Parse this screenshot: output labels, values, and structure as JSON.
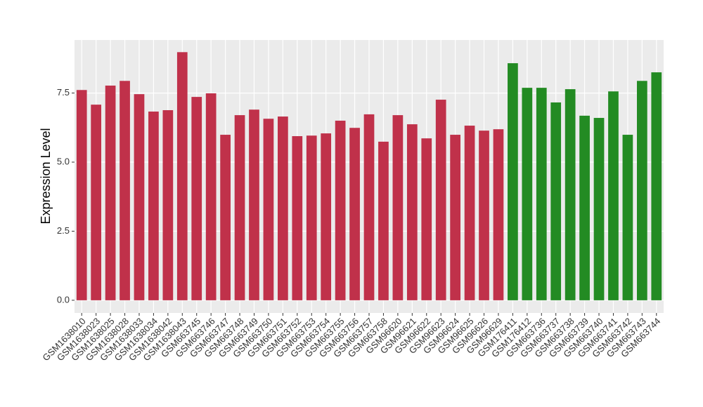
{
  "chart_data": {
    "type": "bar",
    "y_label": "Expression Level",
    "categories": [
      "GSM1638010",
      "GSM1638023",
      "GSM1638025",
      "GSM1638028",
      "GSM1638033",
      "GSM1638034",
      "GSM1638042",
      "GSM1638043",
      "GSM663745",
      "GSM663746",
      "GSM663747",
      "GSM663748",
      "GSM663749",
      "GSM663750",
      "GSM663751",
      "GSM663752",
      "GSM663753",
      "GSM663754",
      "GSM663755",
      "GSM663756",
      "GSM663757",
      "GSM663758",
      "GSM96620",
      "GSM96621",
      "GSM96622",
      "GSM96623",
      "GSM96624",
      "GSM96625",
      "GSM96626",
      "GSM96629",
      "GSM176411",
      "GSM176412",
      "GSM663736",
      "GSM663737",
      "GSM663738",
      "GSM663739",
      "GSM663740",
      "GSM663741",
      "GSM663742",
      "GSM663743",
      "GSM663744"
    ],
    "values": [
      7.61,
      7.08,
      7.77,
      7.94,
      7.46,
      6.83,
      6.88,
      8.98,
      7.36,
      7.49,
      5.99,
      6.7,
      6.9,
      6.57,
      6.65,
      5.94,
      5.96,
      6.04,
      6.5,
      6.24,
      6.73,
      5.74,
      6.7,
      6.37,
      5.86,
      7.26,
      5.99,
      6.32,
      6.14,
      6.19,
      8.58,
      7.69,
      7.69,
      7.16,
      7.64,
      6.68,
      6.6,
      7.56,
      5.99,
      7.94,
      8.25
    ],
    "colors": [
      "#c0314a",
      "#c0314a",
      "#c0314a",
      "#c0314a",
      "#c0314a",
      "#c0314a",
      "#c0314a",
      "#c0314a",
      "#c0314a",
      "#c0314a",
      "#c0314a",
      "#c0314a",
      "#c0314a",
      "#c0314a",
      "#c0314a",
      "#c0314a",
      "#c0314a",
      "#c0314a",
      "#c0314a",
      "#c0314a",
      "#c0314a",
      "#c0314a",
      "#c0314a",
      "#c0314a",
      "#c0314a",
      "#c0314a",
      "#c0314a",
      "#c0314a",
      "#c0314a",
      "#c0314a",
      "#238b23",
      "#238b23",
      "#238b23",
      "#238b23",
      "#238b23",
      "#238b23",
      "#238b23",
      "#238b23",
      "#238b23",
      "#238b23",
      "#238b23"
    ],
    "ylim": [
      -0.46,
      9.42
    ],
    "yticks": [
      {
        "value": 0,
        "label": "0.0"
      },
      2.5,
      {
        "value": 5,
        "label": "5.0"
      },
      7.5
    ],
    "grid": true
  }
}
